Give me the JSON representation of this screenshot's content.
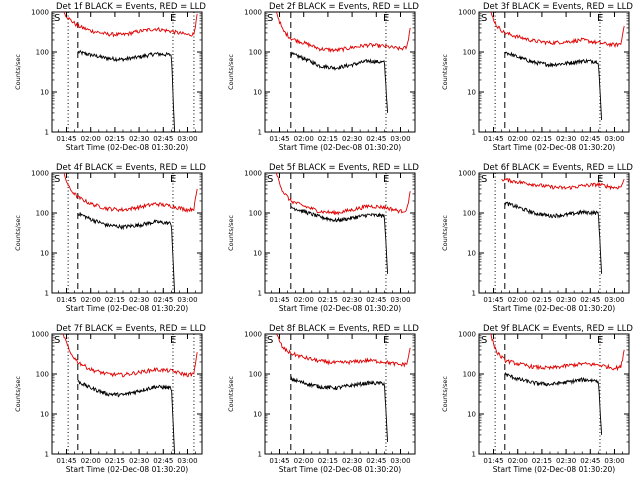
{
  "chart_data": [
    {
      "type": "line",
      "title": "Det 1f BLACK = Events, RED = LLD",
      "ylabel": "Counts/sec",
      "xlabel": "Start Time (02-Dec-08 01:30:20)",
      "x_ticks": [
        "01:45",
        "02:00",
        "02:15",
        "02:30",
        "02:45",
        "03:00"
      ],
      "y_ticks": [
        "1",
        "10",
        "100",
        "1000"
      ],
      "x_domain_hours": [
        1.6,
        3.15
      ],
      "y_scale": "log",
      "ylim": [
        1,
        1000
      ],
      "start_marker": "S",
      "end_marker": "E",
      "time_markers": [
        {
          "time": "01:46",
          "style": "dotted"
        },
        {
          "time": "01:52",
          "style": "dashed"
        },
        {
          "time": "02:51",
          "style": "dotted"
        },
        {
          "time": "03:04",
          "style": "dotted"
        }
      ],
      "series": [
        {
          "color": "#000000",
          "start": "01:52",
          "end": "02:52",
          "x": [
            "01:52",
            "02:00",
            "02:10",
            "02:20",
            "02:30",
            "02:40",
            "02:50",
            "02:52"
          ],
          "y": [
            100,
            85,
            70,
            65,
            75,
            90,
            85,
            1
          ]
        },
        {
          "color": "#e00000",
          "start": "01:43",
          "end": "03:06",
          "x": [
            "01:43",
            "01:47",
            "01:52",
            "02:00",
            "02:10",
            "02:20",
            "02:30",
            "02:40",
            "02:50",
            "03:00",
            "03:04",
            "03:06"
          ],
          "y": [
            1000,
            650,
            450,
            340,
            280,
            270,
            330,
            380,
            330,
            270,
            280,
            900
          ]
        }
      ]
    },
    {
      "type": "line",
      "title": "Det 2f BLACK = Events, RED = LLD",
      "ylabel": "Counts/sec",
      "xlabel": "Start Time (02-Dec-08 01:30:20)",
      "x_ticks": [
        "01:45",
        "02:00",
        "02:15",
        "02:30",
        "02:45",
        "03:00"
      ],
      "y_ticks": [
        "1",
        "10",
        "100",
        "1000"
      ],
      "x_domain_hours": [
        1.6,
        3.15
      ],
      "y_scale": "log",
      "ylim": [
        1,
        1000
      ],
      "start_marker": "S",
      "end_marker": "E",
      "time_markers": [
        {
          "time": "01:52",
          "style": "dashed"
        },
        {
          "time": "02:51",
          "style": "dotted"
        }
      ],
      "series": [
        {
          "color": "#000000",
          "start": "01:52",
          "end": "02:52",
          "x": [
            "01:52",
            "02:00",
            "02:10",
            "02:20",
            "02:30",
            "02:40",
            "02:50",
            "02:52"
          ],
          "y": [
            90,
            70,
            45,
            40,
            48,
            60,
            55,
            3
          ]
        },
        {
          "color": "#e00000",
          "start": "01:43",
          "end": "03:06",
          "x": [
            "01:43",
            "01:47",
            "01:52",
            "02:00",
            "02:10",
            "02:20",
            "02:30",
            "02:40",
            "02:50",
            "03:00",
            "03:04",
            "03:06"
          ],
          "y": [
            1000,
            350,
            220,
            170,
            120,
            110,
            130,
            150,
            140,
            120,
            130,
            400
          ]
        }
      ]
    },
    {
      "type": "line",
      "title": "Det 3f BLACK = Events, RED = LLD",
      "ylabel": "Counts/sec",
      "xlabel": "Start Time (02-Dec-08 01:30:20)",
      "x_ticks": [
        "01:45",
        "02:00",
        "02:15",
        "02:30",
        "02:45",
        "03:00"
      ],
      "y_ticks": [
        "1",
        "10",
        "100",
        "1000"
      ],
      "x_domain_hours": [
        1.6,
        3.15
      ],
      "y_scale": "log",
      "ylim": [
        1,
        1000
      ],
      "start_marker": "S",
      "end_marker": "E",
      "time_markers": [
        {
          "time": "01:46",
          "style": "dotted"
        },
        {
          "time": "01:52",
          "style": "dashed"
        },
        {
          "time": "02:51",
          "style": "dotted"
        }
      ],
      "series": [
        {
          "color": "#000000",
          "start": "01:52",
          "end": "02:52",
          "x": [
            "01:52",
            "02:00",
            "02:10",
            "02:20",
            "02:30",
            "02:40",
            "02:50",
            "02:52"
          ],
          "y": [
            100,
            75,
            55,
            48,
            52,
            60,
            58,
            2
          ]
        },
        {
          "color": "#e00000",
          "start": "01:43",
          "end": "03:06",
          "x": [
            "01:43",
            "01:47",
            "01:52",
            "02:00",
            "02:10",
            "02:20",
            "02:30",
            "02:40",
            "02:50",
            "03:00",
            "03:04",
            "03:06"
          ],
          "y": [
            1000,
            450,
            300,
            240,
            190,
            170,
            180,
            200,
            170,
            150,
            160,
            450
          ]
        }
      ]
    },
    {
      "type": "line",
      "title": "Det 4f BLACK = Events, RED = LLD",
      "ylabel": "Counts/sec",
      "xlabel": "Start Time (02-Dec-08 01:30:20)",
      "x_ticks": [
        "01:45",
        "02:00",
        "02:15",
        "02:30",
        "02:45",
        "03:00"
      ],
      "y_ticks": [
        "1",
        "10",
        "100",
        "1000"
      ],
      "x_domain_hours": [
        1.6,
        3.15
      ],
      "y_scale": "log",
      "ylim": [
        1,
        1000
      ],
      "start_marker": "S",
      "end_marker": "E",
      "time_markers": [
        {
          "time": "01:46",
          "style": "dotted"
        },
        {
          "time": "01:52",
          "style": "dashed"
        },
        {
          "time": "02:51",
          "style": "dotted"
        }
      ],
      "series": [
        {
          "color": "#000000",
          "start": "01:52",
          "end": "02:52",
          "x": [
            "01:52",
            "02:00",
            "02:10",
            "02:20",
            "02:30",
            "02:40",
            "02:50",
            "02:52"
          ],
          "y": [
            100,
            70,
            50,
            45,
            50,
            60,
            55,
            1
          ]
        },
        {
          "color": "#e00000",
          "start": "01:43",
          "end": "03:06",
          "x": [
            "01:43",
            "01:47",
            "01:52",
            "02:00",
            "02:10",
            "02:20",
            "02:30",
            "02:40",
            "02:50",
            "03:00",
            "03:04",
            "03:06"
          ],
          "y": [
            1000,
            400,
            250,
            170,
            130,
            120,
            140,
            170,
            150,
            120,
            130,
            400
          ]
        }
      ]
    },
    {
      "type": "line",
      "title": "Det 5f BLACK = Events, RED = LLD",
      "ylabel": "Counts/sec",
      "xlabel": "Start Time (02-Dec-08 01:30:20)",
      "x_ticks": [
        "01:45",
        "02:00",
        "02:15",
        "02:30",
        "02:45",
        "03:00"
      ],
      "y_ticks": [
        "1",
        "10",
        "100",
        "1000"
      ],
      "x_domain_hours": [
        1.6,
        3.15
      ],
      "y_scale": "log",
      "ylim": [
        1,
        1000
      ],
      "start_marker": "S",
      "end_marker": "E",
      "time_markers": [
        {
          "time": "01:52",
          "style": "dashed"
        },
        {
          "time": "02:51",
          "style": "dotted"
        }
      ],
      "series": [
        {
          "color": "#000000",
          "start": "01:52",
          "end": "02:52",
          "x": [
            "01:52",
            "02:00",
            "02:10",
            "02:20",
            "02:30",
            "02:40",
            "02:50",
            "02:52"
          ],
          "y": [
            140,
            110,
            80,
            65,
            75,
            90,
            85,
            3
          ]
        },
        {
          "color": "#e00000",
          "start": "01:43",
          "end": "03:06",
          "x": [
            "01:43",
            "01:47",
            "01:52",
            "02:00",
            "02:10",
            "02:20",
            "02:30",
            "02:40",
            "02:50",
            "03:00",
            "03:04",
            "03:06"
          ],
          "y": [
            1000,
            350,
            200,
            150,
            110,
            100,
            120,
            150,
            140,
            110,
            120,
            350
          ]
        }
      ]
    },
    {
      "type": "line",
      "title": "Det 6f BLACK = Events, RED = LLD",
      "ylabel": "Counts/sec",
      "xlabel": "Start Time (02-Dec-08 01:30:20)",
      "x_ticks": [
        "01:45",
        "02:00",
        "02:15",
        "02:30",
        "02:45",
        "03:00"
      ],
      "y_ticks": [
        "1",
        "10",
        "100",
        "1000"
      ],
      "x_domain_hours": [
        1.6,
        3.15
      ],
      "y_scale": "log",
      "ylim": [
        1,
        1000
      ],
      "start_marker": "S",
      "end_marker": "E",
      "time_markers": [
        {
          "time": "01:46",
          "style": "dotted"
        },
        {
          "time": "01:52",
          "style": "dashed"
        },
        {
          "time": "02:51",
          "style": "dotted"
        }
      ],
      "series": [
        {
          "color": "#000000",
          "start": "01:52",
          "end": "02:52",
          "x": [
            "01:52",
            "02:00",
            "02:10",
            "02:20",
            "02:30",
            "02:40",
            "02:50",
            "02:52"
          ],
          "y": [
            180,
            140,
            100,
            85,
            90,
            105,
            100,
            3
          ]
        },
        {
          "color": "#e00000",
          "start": "01:50",
          "end": "03:06",
          "x": [
            "01:50",
            "01:55",
            "02:00",
            "02:10",
            "02:20",
            "02:30",
            "02:40",
            "02:50",
            "03:00",
            "03:04",
            "03:06"
          ],
          "y": [
            700,
            650,
            600,
            520,
            450,
            420,
            480,
            520,
            430,
            450,
            700
          ]
        }
      ]
    },
    {
      "type": "line",
      "title": "Det 7f BLACK = Events, RED = LLD",
      "ylabel": "Counts/sec",
      "xlabel": "Start Time (02-Dec-08 01:30:20)",
      "x_ticks": [
        "01:45",
        "02:00",
        "02:15",
        "02:30",
        "02:45",
        "03:00"
      ],
      "y_ticks": [
        "1",
        "10",
        "100",
        "1000"
      ],
      "x_domain_hours": [
        1.6,
        3.15
      ],
      "y_scale": "log",
      "ylim": [
        1,
        1000
      ],
      "start_marker": "S",
      "end_marker": "E",
      "time_markers": [
        {
          "time": "01:46",
          "style": "dotted"
        },
        {
          "time": "01:52",
          "style": "dashed"
        },
        {
          "time": "02:51",
          "style": "dotted"
        },
        {
          "time": "03:04",
          "style": "dotted"
        }
      ],
      "series": [
        {
          "color": "#000000",
          "start": "01:52",
          "end": "02:52",
          "x": [
            "01:52",
            "02:00",
            "02:10",
            "02:20",
            "02:30",
            "02:40",
            "02:50",
            "02:52"
          ],
          "y": [
            65,
            45,
            32,
            30,
            38,
            48,
            45,
            1
          ]
        },
        {
          "color": "#e00000",
          "start": "01:43",
          "end": "03:06",
          "x": [
            "01:43",
            "01:47",
            "01:52",
            "02:00",
            "02:10",
            "02:20",
            "02:30",
            "02:40",
            "02:50",
            "03:00",
            "03:04",
            "03:06"
          ],
          "y": [
            1000,
            350,
            200,
            130,
            100,
            95,
            110,
            130,
            120,
            95,
            100,
            350
          ]
        }
      ]
    },
    {
      "type": "line",
      "title": "Det 8f BLACK = Events, RED = LLD",
      "ylabel": "Counts/sec",
      "xlabel": "Start Time (02-Dec-08 01:30:20)",
      "x_ticks": [
        "01:45",
        "02:00",
        "02:15",
        "02:30",
        "02:45",
        "03:00"
      ],
      "y_ticks": [
        "1",
        "10",
        "100",
        "1000"
      ],
      "x_domain_hours": [
        1.6,
        3.15
      ],
      "y_scale": "log",
      "ylim": [
        1,
        1000
      ],
      "start_marker": "S",
      "end_marker": "E",
      "time_markers": [
        {
          "time": "01:52",
          "style": "dashed"
        },
        {
          "time": "02:51",
          "style": "dotted"
        }
      ],
      "series": [
        {
          "color": "#000000",
          "start": "01:52",
          "end": "02:52",
          "x": [
            "01:52",
            "02:00",
            "02:10",
            "02:20",
            "02:30",
            "02:40",
            "02:50",
            "02:52"
          ],
          "y": [
            75,
            60,
            48,
            45,
            52,
            60,
            58,
            2
          ]
        },
        {
          "color": "#e00000",
          "start": "01:43",
          "end": "03:06",
          "x": [
            "01:43",
            "01:47",
            "01:52",
            "02:00",
            "02:10",
            "02:20",
            "02:30",
            "02:40",
            "02:50",
            "03:00",
            "03:04",
            "03:06"
          ],
          "y": [
            1000,
            450,
            330,
            260,
            210,
            190,
            200,
            220,
            200,
            170,
            180,
            450
          ]
        }
      ]
    },
    {
      "type": "line",
      "title": "Det 9f BLACK = Events, RED = LLD",
      "ylabel": "Counts/sec",
      "xlabel": "Start Time (02-Dec-08 01:30:20)",
      "x_ticks": [
        "01:45",
        "02:00",
        "02:15",
        "02:30",
        "02:45",
        "03:00"
      ],
      "y_ticks": [
        "1",
        "10",
        "100",
        "1000"
      ],
      "x_domain_hours": [
        1.6,
        3.15
      ],
      "y_scale": "log",
      "ylim": [
        1,
        1000
      ],
      "start_marker": "S",
      "end_marker": "E",
      "time_markers": [
        {
          "time": "01:46",
          "style": "dotted"
        },
        {
          "time": "01:52",
          "style": "dashed"
        },
        {
          "time": "02:51",
          "style": "dotted"
        }
      ],
      "series": [
        {
          "color": "#000000",
          "start": "01:52",
          "end": "02:52",
          "x": [
            "01:52",
            "02:00",
            "02:10",
            "02:20",
            "02:30",
            "02:40",
            "02:50",
            "02:52"
          ],
          "y": [
            100,
            75,
            60,
            55,
            62,
            72,
            68,
            3
          ]
        },
        {
          "color": "#e00000",
          "start": "01:43",
          "end": "03:06",
          "x": [
            "01:43",
            "01:47",
            "01:52",
            "02:00",
            "02:10",
            "02:20",
            "02:30",
            "02:40",
            "02:50",
            "03:00",
            "03:04",
            "03:06"
          ],
          "y": [
            1000,
            350,
            220,
            180,
            150,
            140,
            160,
            180,
            170,
            140,
            150,
            400
          ]
        }
      ]
    }
  ]
}
